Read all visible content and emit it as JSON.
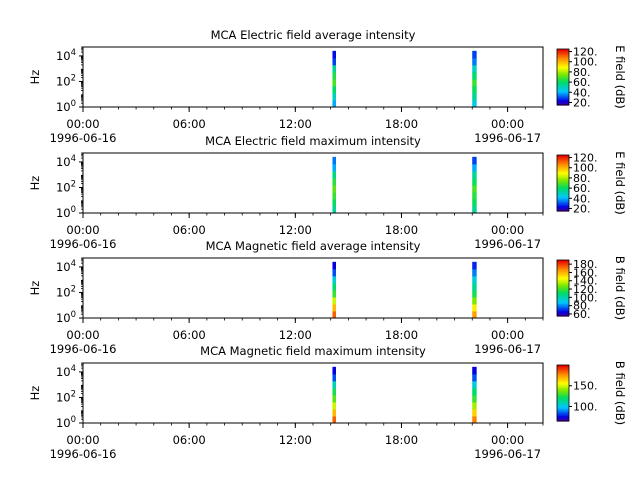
{
  "chart_data": [
    {
      "type": "heatmap",
      "title": "MCA  Electric field average intensity",
      "ylabel": "Hz",
      "colorbar_label": "E field (dB)",
      "colorbar_range": [
        15,
        125
      ],
      "colorbar_ticks": [
        "20.",
        "40.",
        "60.",
        "80.",
        "100.",
        "120."
      ],
      "colorbar_tick_values": [
        20,
        40,
        60,
        80,
        100,
        120
      ],
      "y_ticks": [
        {
          "exp": "0",
          "value": 1
        },
        {
          "exp": "2",
          "value": 100
        },
        {
          "exp": "4",
          "value": 10000
        }
      ],
      "bursts": [
        {
          "start_hour": 14.1,
          "end_hour": 14.3,
          "profile": [
            40,
            50,
            60,
            70,
            65,
            55,
            30,
            25
          ]
        },
        {
          "start_hour": 22.0,
          "end_hour": 22.25,
          "profile": [
            45,
            55,
            62,
            68,
            60,
            50,
            35,
            30
          ]
        }
      ]
    },
    {
      "type": "heatmap",
      "title": "MCA  Electric field maximum intensity",
      "ylabel": "Hz",
      "colorbar_label": "E field (dB)",
      "colorbar_range": [
        15,
        125
      ],
      "colorbar_ticks": [
        "20.",
        "40.",
        "60.",
        "80.",
        "100.",
        "120."
      ],
      "colorbar_tick_values": [
        20,
        40,
        60,
        80,
        100,
        120
      ],
      "y_ticks": [
        {
          "exp": "0",
          "value": 1
        },
        {
          "exp": "2",
          "value": 100
        },
        {
          "exp": "4",
          "value": 10000
        }
      ],
      "bursts": [
        {
          "start_hour": 14.1,
          "end_hour": 14.3,
          "profile": [
            55,
            62,
            68,
            72,
            66,
            58,
            40,
            35
          ]
        },
        {
          "start_hour": 22.0,
          "end_hour": 22.25,
          "profile": [
            55,
            62,
            66,
            70,
            62,
            55,
            40,
            30
          ]
        }
      ]
    },
    {
      "type": "heatmap",
      "title": "MCA  Magnetic field average intensity",
      "ylabel": "Hz",
      "colorbar_label": "B field (dB)",
      "colorbar_range": [
        55,
        190
      ],
      "colorbar_ticks": [
        "60.",
        "80.",
        "100.",
        "120.",
        "140.",
        "160.",
        "180."
      ],
      "colorbar_tick_values": [
        60,
        80,
        100,
        120,
        140,
        160,
        180
      ],
      "y_ticks": [
        {
          "exp": "0",
          "value": 1
        },
        {
          "exp": "2",
          "value": 100
        },
        {
          "exp": "4",
          "value": 10000
        }
      ],
      "bursts": [
        {
          "start_hour": 14.1,
          "end_hour": 14.3,
          "profile": [
            175,
            160,
            140,
            120,
            110,
            95,
            75,
            65
          ]
        },
        {
          "start_hour": 22.0,
          "end_hour": 22.25,
          "profile": [
            165,
            150,
            130,
            115,
            105,
            95,
            80,
            70
          ]
        }
      ]
    },
    {
      "type": "heatmap",
      "title": "MCA  Magnetic field maximum intensity",
      "ylabel": "Hz",
      "colorbar_label": "B field (dB)",
      "colorbar_range": [
        65,
        200
      ],
      "colorbar_ticks": [
        "100.",
        "150."
      ],
      "colorbar_tick_values": [
        100,
        150
      ],
      "y_ticks": [
        {
          "exp": "0",
          "value": 1
        },
        {
          "exp": "2",
          "value": 100
        },
        {
          "exp": "4",
          "value": 10000
        }
      ],
      "bursts": [
        {
          "start_hour": 14.1,
          "end_hour": 14.3,
          "profile": [
            185,
            170,
            150,
            135,
            125,
            110,
            85,
            75
          ]
        },
        {
          "start_hour": 22.0,
          "end_hour": 22.25,
          "profile": [
            180,
            165,
            145,
            130,
            120,
            105,
            85,
            75
          ]
        }
      ]
    }
  ],
  "x_axis": {
    "range_hours": [
      0,
      26
    ],
    "ticks": [
      {
        "hour": 0,
        "time": "00:00",
        "date": "1996-06-16"
      },
      {
        "hour": 6,
        "time": "06:00",
        "date": ""
      },
      {
        "hour": 12,
        "time": "12:00",
        "date": ""
      },
      {
        "hour": 18,
        "time": "18:00",
        "date": ""
      },
      {
        "hour": 24,
        "time": "00:00",
        "date": "1996-06-17"
      }
    ],
    "minor_tick_every_hours": 1
  },
  "y_range_log10": [
    0,
    4.7
  ]
}
